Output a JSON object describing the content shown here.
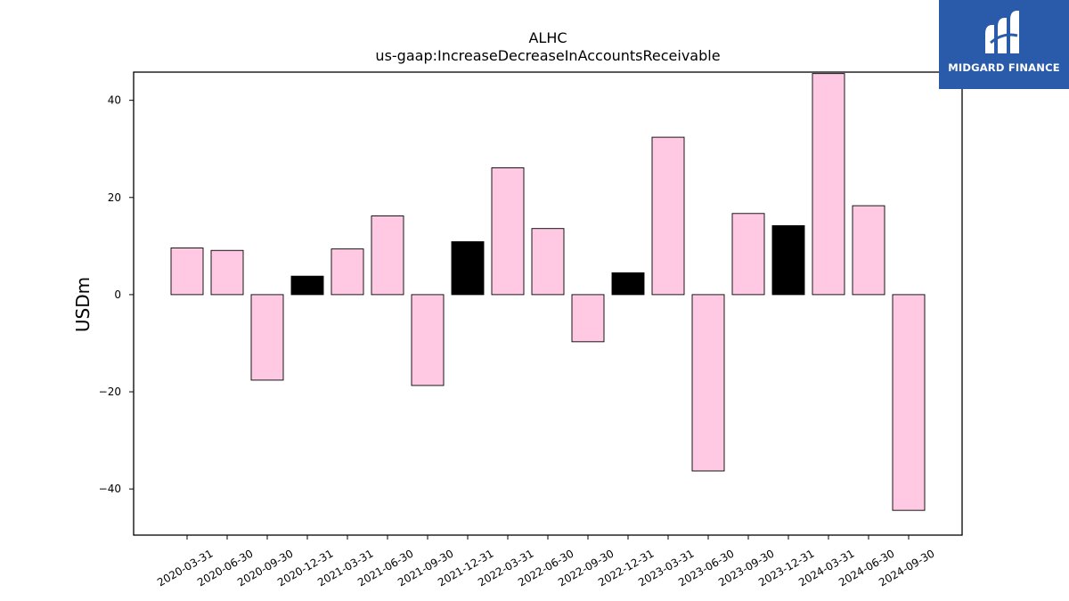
{
  "logo": {
    "text": "MIDGARD FINANCE",
    "icon": "mf-monogram-icon",
    "background": "#2a5bab"
  },
  "chart_data": {
    "type": "bar",
    "title": "ALHC",
    "subtitle": "us-gaap:IncreaseDecreaseInAccountsReceivable",
    "xlabel": "",
    "ylabel": "USDm",
    "ylim": [
      -49.5,
      45.8
    ],
    "yticks": [
      -40,
      -20,
      0,
      20,
      40
    ],
    "grid": false,
    "categories": [
      "2020-03-31",
      "2020-06-30",
      "2020-09-30",
      "2020-12-31",
      "2021-03-31",
      "2021-06-30",
      "2021-09-30",
      "2021-12-31",
      "2022-03-31",
      "2022-06-30",
      "2022-09-30",
      "2022-12-31",
      "2023-03-31",
      "2023-06-30",
      "2023-09-30",
      "2023-12-31",
      "2024-03-31",
      "2024-06-30",
      "2024-09-30"
    ],
    "values": [
      9.6,
      9.1,
      -17.6,
      3.8,
      9.4,
      16.2,
      -18.7,
      10.9,
      26.1,
      13.6,
      -9.7,
      4.5,
      32.4,
      -36.3,
      16.7,
      14.2,
      45.5,
      18.3,
      -44.4
    ],
    "colors": {
      "quarter": "#ffc8e3",
      "year_end": "#000000",
      "edge": "#000000"
    },
    "highlighted_categories": [
      "2020-12-31",
      "2021-12-31",
      "2022-12-31",
      "2023-12-31"
    ]
  }
}
